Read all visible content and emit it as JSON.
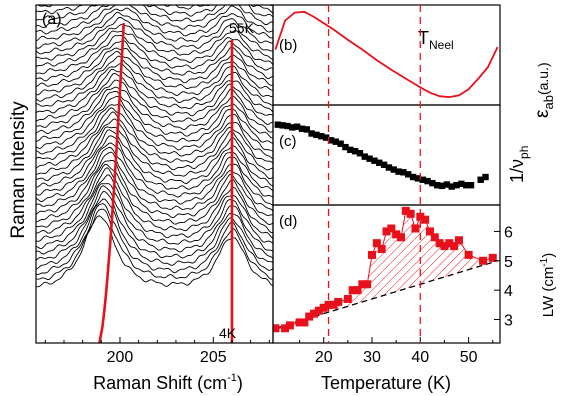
{
  "colors": {
    "frame": "#000000",
    "accent": "#e8101a",
    "spectra": "#000000"
  },
  "chart_data": [
    {
      "id": "a",
      "type": "line",
      "panel_label": "(a)",
      "xlabel": "Raman Shift (cm",
      "xlabel_sup": "-1",
      "xlabel_tail": ")",
      "ylabel": "Raman Intensity",
      "xlim": [
        195.5,
        208.2
      ],
      "xticks": [
        200,
        205
      ],
      "temp_top": "55K",
      "temp_bottom": "4K",
      "n_spectra": 43,
      "peak1_low_T": 198.9,
      "peak1_high_T": 200.2,
      "peak2": 206.0
    },
    {
      "id": "b",
      "type": "line",
      "panel_label": "(b)",
      "annotation": "T",
      "annotation_sub": "Neel",
      "ylabel": "ε",
      "ylabel_sub": "ab",
      "ylabel_tail": "(a.u.)",
      "x": [
        10,
        12,
        14,
        16,
        18,
        20,
        22,
        25,
        28,
        31,
        34,
        37,
        40,
        42,
        44,
        46,
        48,
        50,
        52,
        54,
        56
      ],
      "y": [
        0.55,
        0.88,
        0.97,
        0.98,
        0.92,
        0.85,
        0.78,
        0.66,
        0.55,
        0.43,
        0.32,
        0.22,
        0.12,
        0.06,
        0.02,
        0.01,
        0.03,
        0.1,
        0.22,
        0.35,
        0.58
      ]
    },
    {
      "id": "c",
      "type": "scatter",
      "panel_label": "(c)",
      "ylabel": "1/ν",
      "ylabel_sub": "ph",
      "x": [
        10.5,
        11.5,
        12.5,
        13.5,
        14.5,
        15.5,
        16.5,
        17.5,
        18.5,
        19.5,
        20.5,
        21.5,
        22.5,
        23.5,
        24.5,
        25.5,
        26.5,
        27.5,
        28.5,
        29.5,
        30.5,
        31.5,
        32.5,
        33.5,
        34.5,
        35.5,
        36.5,
        37.5,
        38.5,
        39.5,
        40.5,
        41.5,
        42.5,
        43.5,
        44.5,
        45.5,
        46.5,
        47.5,
        48.5,
        49.5,
        50.5,
        52.5,
        53.5
      ],
      "y": [
        0.99,
        0.98,
        0.97,
        0.95,
        0.96,
        0.93,
        0.92,
        0.86,
        0.84,
        0.82,
        0.8,
        0.76,
        0.74,
        0.71,
        0.66,
        0.62,
        0.6,
        0.57,
        0.52,
        0.49,
        0.46,
        0.43,
        0.4,
        0.36,
        0.33,
        0.3,
        0.29,
        0.26,
        0.22,
        0.2,
        0.18,
        0.16,
        0.13,
        0.1,
        0.09,
        0.11,
        0.08,
        0.1,
        0.12,
        0.1,
        0.1,
        0.18,
        0.22
      ]
    },
    {
      "id": "d",
      "type": "scatter",
      "panel_label": "(d)",
      "ylabel": "LW (cm",
      "ylabel_sup": "-1",
      "ylabel_tail": ")",
      "xlabel": "Temperature (K)",
      "xlim": [
        9.5,
        56.5
      ],
      "ylim": [
        2.2,
        6.9
      ],
      "xticks": [
        20,
        30,
        40,
        50
      ],
      "yticks": [
        3,
        4,
        5,
        6
      ],
      "x": [
        10,
        12,
        13,
        15,
        16,
        17,
        18,
        19,
        20,
        21,
        22,
        23,
        25,
        26,
        27,
        28,
        29,
        30,
        31,
        32,
        33,
        34,
        35,
        36,
        37,
        38,
        39,
        40,
        41,
        42,
        43,
        44,
        45,
        46,
        47,
        48,
        50,
        53,
        55
      ],
      "y": [
        2.7,
        2.7,
        2.8,
        2.9,
        2.9,
        3.1,
        3.2,
        3.3,
        3.4,
        3.5,
        3.5,
        3.6,
        3.7,
        4.0,
        4.0,
        4.2,
        4.2,
        5.2,
        5.6,
        5.4,
        6.0,
        6.1,
        5.9,
        5.8,
        6.7,
        6.6,
        6.1,
        6.5,
        6.4,
        6.0,
        5.8,
        5.6,
        5.5,
        5.6,
        5.5,
        5.7,
        5.2,
        5.0,
        5.1
      ],
      "baseline": {
        "x": [
          10,
          56
        ],
        "y": [
          2.7,
          5.0
        ]
      }
    }
  ],
  "t_neel_line": 40,
  "t_transition_line": 21
}
